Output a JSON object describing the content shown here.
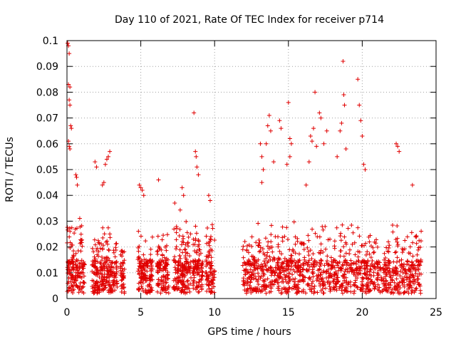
{
  "chart_data": {
    "type": "scatter",
    "title": "Day 110 of 2021, Rate Of TEC Index for receiver p714",
    "xlabel": "GPS time / hours",
    "ylabel": "ROTI / TECUs",
    "xlim": [
      0,
      25
    ],
    "ylim": [
      0,
      0.1
    ],
    "xticks": [
      0,
      5,
      10,
      15,
      20,
      25
    ],
    "xtick_labels": [
      "0",
      "5",
      "10",
      "15",
      "20",
      "25"
    ],
    "yticks": [
      0,
      0.01,
      0.02,
      0.03,
      0.04,
      0.05,
      0.06,
      0.07,
      0.08,
      0.09,
      0.1
    ],
    "ytick_labels": [
      "0",
      "0.01",
      "0.02",
      "0.03",
      "0.04",
      "0.05",
      "0.06",
      "0.07",
      "0.08",
      "0.09",
      "0.1"
    ],
    "grid": true,
    "marker": "+",
    "color": "#e00000",
    "segments": [
      {
        "start": 0.0,
        "end": 1.2,
        "peak": 0.035
      },
      {
        "start": 1.7,
        "end": 3.4,
        "peak": 0.028
      },
      {
        "start": 3.6,
        "end": 3.9,
        "peak": 0.022
      },
      {
        "start": 4.8,
        "end": 5.8,
        "peak": 0.03
      },
      {
        "start": 6.1,
        "end": 6.9,
        "peak": 0.025
      },
      {
        "start": 7.2,
        "end": 8.4,
        "peak": 0.035
      },
      {
        "start": 8.5,
        "end": 9.2,
        "peak": 0.03
      },
      {
        "start": 9.4,
        "end": 10.0,
        "peak": 0.034
      },
      {
        "start": 11.9,
        "end": 24.0,
        "peak": 0.03
      }
    ],
    "series": [
      {
        "name": "p714 ROTI",
        "points": [
          [
            0.05,
            0.099
          ],
          [
            0.1,
            0.098
          ],
          [
            0.15,
            0.095
          ],
          [
            0.1,
            0.083
          ],
          [
            0.2,
            0.082
          ],
          [
            0.15,
            0.077
          ],
          [
            0.2,
            0.075
          ],
          [
            0.25,
            0.067
          ],
          [
            0.3,
            0.066
          ],
          [
            0.1,
            0.061
          ],
          [
            0.15,
            0.059
          ],
          [
            0.2,
            0.058
          ],
          [
            0.6,
            0.048
          ],
          [
            0.65,
            0.047
          ],
          [
            0.7,
            0.044
          ],
          [
            1.9,
            0.053
          ],
          [
            2.0,
            0.051
          ],
          [
            2.4,
            0.044
          ],
          [
            2.5,
            0.045
          ],
          [
            2.7,
            0.054
          ],
          [
            2.8,
            0.055
          ],
          [
            2.9,
            0.057
          ],
          [
            2.6,
            0.052
          ],
          [
            4.9,
            0.044
          ],
          [
            5.0,
            0.043
          ],
          [
            5.1,
            0.042
          ],
          [
            5.2,
            0.04
          ],
          [
            6.2,
            0.046
          ],
          [
            7.3,
            0.037
          ],
          [
            7.8,
            0.043
          ],
          [
            7.9,
            0.04
          ],
          [
            8.6,
            0.072
          ],
          [
            8.7,
            0.057
          ],
          [
            8.75,
            0.055
          ],
          [
            8.8,
            0.051
          ],
          [
            8.9,
            0.048
          ],
          [
            9.6,
            0.04
          ],
          [
            9.7,
            0.038
          ],
          [
            13.1,
            0.06
          ],
          [
            13.2,
            0.055
          ],
          [
            13.3,
            0.05
          ],
          [
            13.2,
            0.045
          ],
          [
            13.5,
            0.06
          ],
          [
            13.6,
            0.067
          ],
          [
            13.7,
            0.071
          ],
          [
            13.8,
            0.065
          ],
          [
            14.0,
            0.053
          ],
          [
            14.4,
            0.069
          ],
          [
            14.5,
            0.066
          ],
          [
            14.9,
            0.052
          ],
          [
            15.0,
            0.076
          ],
          [
            15.1,
            0.062
          ],
          [
            15.2,
            0.06
          ],
          [
            15.1,
            0.055
          ],
          [
            16.2,
            0.044
          ],
          [
            16.4,
            0.053
          ],
          [
            16.5,
            0.063
          ],
          [
            16.6,
            0.061
          ],
          [
            16.7,
            0.066
          ],
          [
            16.8,
            0.08
          ],
          [
            16.9,
            0.059
          ],
          [
            17.1,
            0.072
          ],
          [
            17.2,
            0.07
          ],
          [
            17.4,
            0.06
          ],
          [
            17.6,
            0.065
          ],
          [
            18.3,
            0.055
          ],
          [
            18.5,
            0.065
          ],
          [
            18.6,
            0.068
          ],
          [
            18.7,
            0.092
          ],
          [
            18.75,
            0.079
          ],
          [
            18.8,
            0.075
          ],
          [
            18.9,
            0.058
          ],
          [
            19.7,
            0.085
          ],
          [
            19.8,
            0.075
          ],
          [
            19.9,
            0.069
          ],
          [
            20.0,
            0.063
          ],
          [
            20.1,
            0.052
          ],
          [
            20.2,
            0.05
          ],
          [
            22.3,
            0.06
          ],
          [
            22.4,
            0.059
          ],
          [
            22.5,
            0.057
          ],
          [
            23.4,
            0.044
          ]
        ]
      }
    ]
  }
}
